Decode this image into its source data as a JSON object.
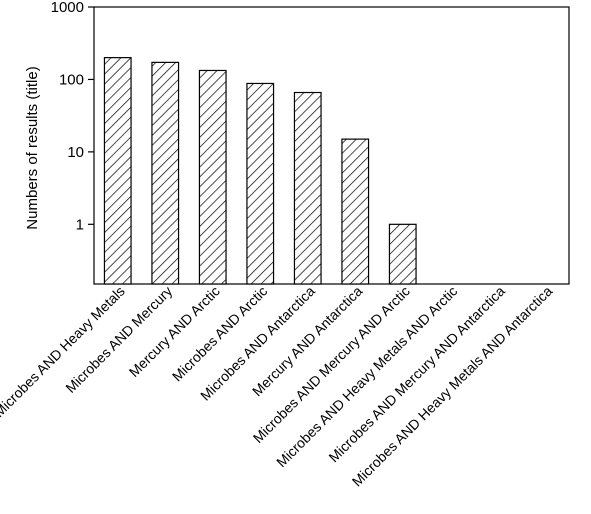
{
  "chart_data": {
    "type": "bar",
    "title": "",
    "xlabel": "",
    "ylabel": "Numbers of results (title)",
    "yscale": "log",
    "ylim": [
      0.15,
      1000
    ],
    "yticks": [
      {
        "value": 1,
        "label": "1"
      },
      {
        "value": 10,
        "label": "10"
      },
      {
        "value": 100,
        "label": "100"
      },
      {
        "value": 1000,
        "label": "1000"
      }
    ],
    "categories": [
      "Microbes AND Heavy Metals",
      "Microbes AND Mercury",
      "Mercury AND Arctic",
      "Microbes AND Arctic",
      "Microbes AND Antarctica",
      "Mercury AND Antarctica",
      "Microbes AND Mercury AND Arctic",
      "Microbes AND Heavy Metals AND Arctic",
      "Microbes AND Mercury AND Antarctica",
      "Microbes AND Heavy Metals AND Antarctica"
    ],
    "values": [
      200,
      172,
      133,
      88,
      66,
      15,
      1,
      0,
      0,
      0
    ],
    "bar_fill": "diagonal-hatch",
    "colors": {
      "bar_stroke": "#000000",
      "hatch": "#000000",
      "background": "#ffffff"
    },
    "grid": false,
    "legend": "none"
  }
}
